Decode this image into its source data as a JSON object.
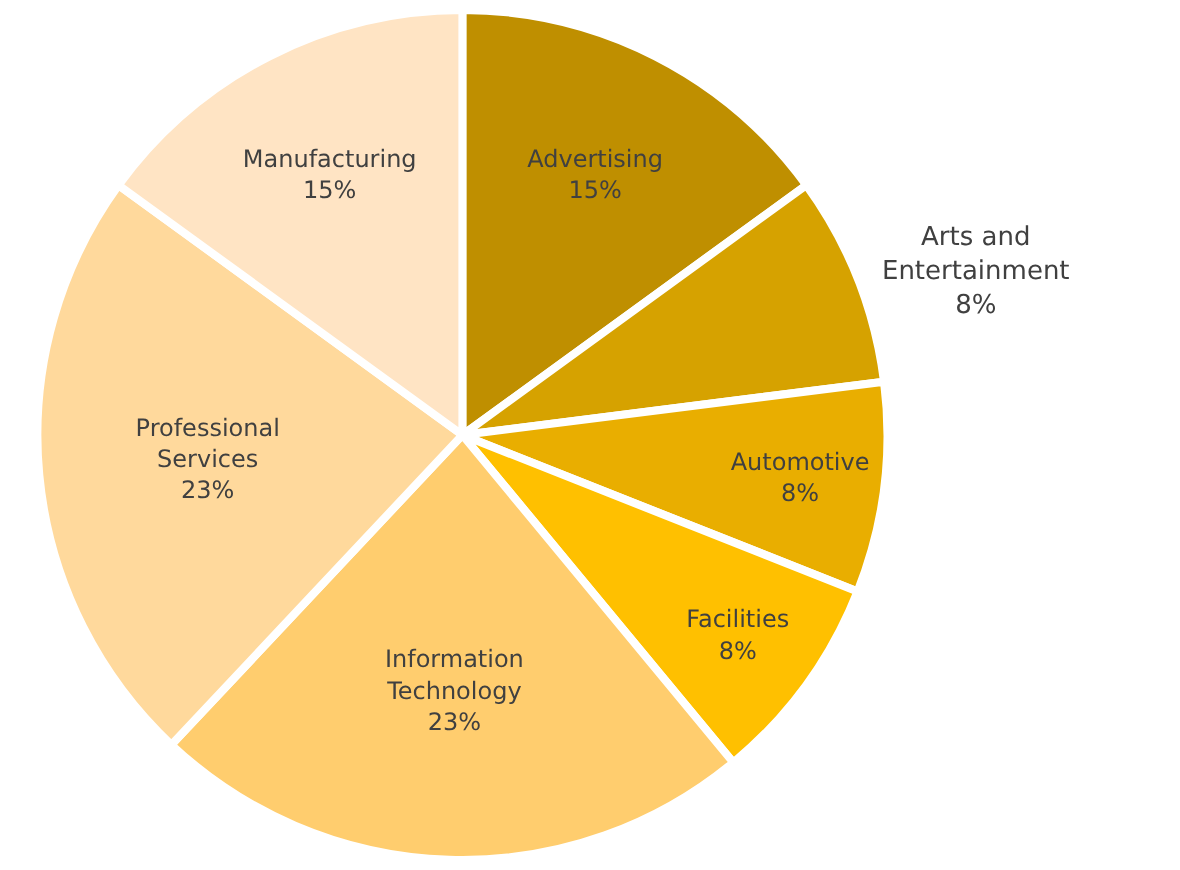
{
  "chart_data": {
    "type": "pie",
    "categories": [
      "Advertising",
      "Arts and Entertainment",
      "Automotive",
      "Facilities",
      "Information Technology",
      "Professional Services",
      "Manufacturing"
    ],
    "values": [
      15,
      8,
      8,
      8,
      23,
      23,
      15
    ],
    "value_labels": [
      "15%",
      "8%",
      "8%",
      "8%",
      "23%",
      "23%",
      "15%"
    ],
    "colors": [
      "#bf8f00",
      "#d6a200",
      "#e9ae00",
      "#ffc000",
      "#ffcd6e",
      "#ffd99c",
      "#ffe4c4"
    ],
    "legend": false
  }
}
